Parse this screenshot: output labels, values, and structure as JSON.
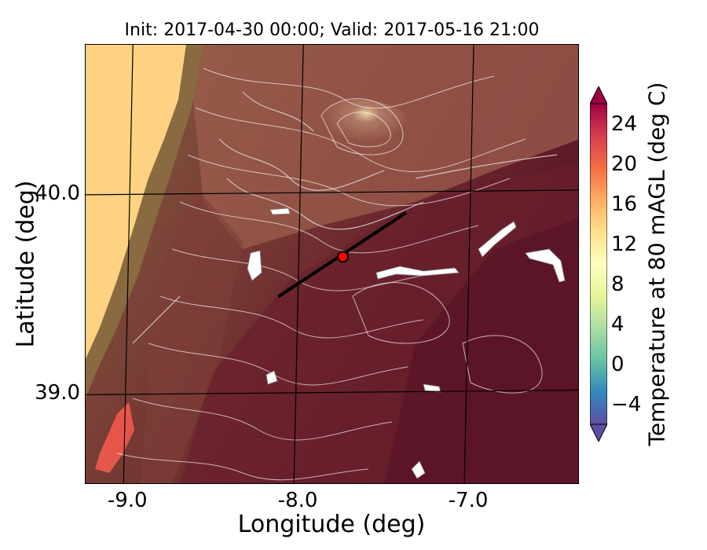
{
  "title": "Init: 2017-04-30 00:00; Valid: 2017-05-16 21:00",
  "axes": {
    "xlabel": "Longitude (deg)",
    "ylabel": "Latitude (deg)",
    "xticks": [
      "-9.0",
      "-8.0",
      "-7.0"
    ],
    "yticks": [
      "40.0",
      "39.0"
    ]
  },
  "colorbar": {
    "label": "Temperature at 80 mAGL (deg C)",
    "ticks": [
      "24",
      "20",
      "16",
      "12",
      "8",
      "4",
      "0",
      "−4"
    ],
    "tick_values": [
      24,
      20,
      16,
      12,
      8,
      4,
      0,
      -4
    ],
    "range": [
      -6,
      26
    ],
    "extend": "both",
    "colors": [
      "#5e4fa2",
      "#3288bd",
      "#66c2a5",
      "#abdda4",
      "#e6f598",
      "#ffffbf",
      "#fee08b",
      "#fdae61",
      "#f46d43",
      "#d53e4f",
      "#9e0142"
    ]
  },
  "map": {
    "lon_range": [
      -9.25,
      -6.35
    ],
    "lat_range": [
      38.55,
      40.75
    ],
    "gridlines": {
      "lons": [
        -9.0,
        -8.0,
        -7.0
      ],
      "lats": [
        40.0,
        39.0
      ]
    },
    "transect": {
      "start": [
        -8.12,
        39.49
      ],
      "end": [
        -7.37,
        39.91
      ]
    },
    "site_marker": {
      "lon": -7.74,
      "lat": 39.69,
      "color": "#ff0000"
    },
    "colors": {
      "ocean": "#fdd282",
      "coast": "#8a6a40",
      "land_cool": "#7d4a3a",
      "land_mid": "#6e2a2e",
      "land_warm": "#5a1428",
      "highland": "#b07a66",
      "contour": "#ffffff",
      "hot_patch": "#e5574a"
    }
  }
}
